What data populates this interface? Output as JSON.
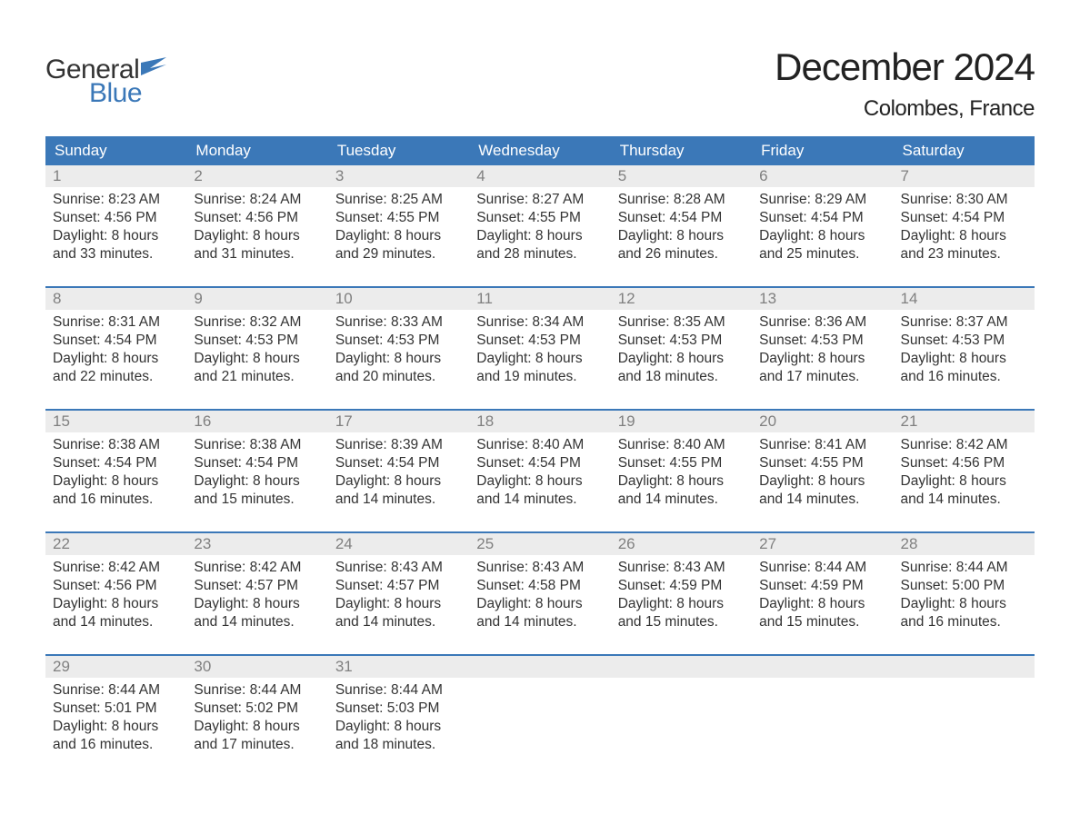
{
  "brand": {
    "part1": "General",
    "part2": "Blue",
    "accent": "#3b78b8"
  },
  "title": "December 2024",
  "location": "Colombes, France",
  "colors": {
    "header_bg": "#3b78b8",
    "header_text": "#ffffff",
    "daynum_bg": "#ececec",
    "daynum_text": "#808080",
    "body_text": "#333333",
    "rule": "#3b78b8",
    "page_bg": "#ffffff"
  },
  "weekdays": [
    "Sunday",
    "Monday",
    "Tuesday",
    "Wednesday",
    "Thursday",
    "Friday",
    "Saturday"
  ],
  "weeks": [
    [
      {
        "day": "1",
        "sunrise": "Sunrise: 8:23 AM",
        "sunset": "Sunset: 4:56 PM",
        "dl1": "Daylight: 8 hours",
        "dl2": "and 33 minutes."
      },
      {
        "day": "2",
        "sunrise": "Sunrise: 8:24 AM",
        "sunset": "Sunset: 4:56 PM",
        "dl1": "Daylight: 8 hours",
        "dl2": "and 31 minutes."
      },
      {
        "day": "3",
        "sunrise": "Sunrise: 8:25 AM",
        "sunset": "Sunset: 4:55 PM",
        "dl1": "Daylight: 8 hours",
        "dl2": "and 29 minutes."
      },
      {
        "day": "4",
        "sunrise": "Sunrise: 8:27 AM",
        "sunset": "Sunset: 4:55 PM",
        "dl1": "Daylight: 8 hours",
        "dl2": "and 28 minutes."
      },
      {
        "day": "5",
        "sunrise": "Sunrise: 8:28 AM",
        "sunset": "Sunset: 4:54 PM",
        "dl1": "Daylight: 8 hours",
        "dl2": "and 26 minutes."
      },
      {
        "day": "6",
        "sunrise": "Sunrise: 8:29 AM",
        "sunset": "Sunset: 4:54 PM",
        "dl1": "Daylight: 8 hours",
        "dl2": "and 25 minutes."
      },
      {
        "day": "7",
        "sunrise": "Sunrise: 8:30 AM",
        "sunset": "Sunset: 4:54 PM",
        "dl1": "Daylight: 8 hours",
        "dl2": "and 23 minutes."
      }
    ],
    [
      {
        "day": "8",
        "sunrise": "Sunrise: 8:31 AM",
        "sunset": "Sunset: 4:54 PM",
        "dl1": "Daylight: 8 hours",
        "dl2": "and 22 minutes."
      },
      {
        "day": "9",
        "sunrise": "Sunrise: 8:32 AM",
        "sunset": "Sunset: 4:53 PM",
        "dl1": "Daylight: 8 hours",
        "dl2": "and 21 minutes."
      },
      {
        "day": "10",
        "sunrise": "Sunrise: 8:33 AM",
        "sunset": "Sunset: 4:53 PM",
        "dl1": "Daylight: 8 hours",
        "dl2": "and 20 minutes."
      },
      {
        "day": "11",
        "sunrise": "Sunrise: 8:34 AM",
        "sunset": "Sunset: 4:53 PM",
        "dl1": "Daylight: 8 hours",
        "dl2": "and 19 minutes."
      },
      {
        "day": "12",
        "sunrise": "Sunrise: 8:35 AM",
        "sunset": "Sunset: 4:53 PM",
        "dl1": "Daylight: 8 hours",
        "dl2": "and 18 minutes."
      },
      {
        "day": "13",
        "sunrise": "Sunrise: 8:36 AM",
        "sunset": "Sunset: 4:53 PM",
        "dl1": "Daylight: 8 hours",
        "dl2": "and 17 minutes."
      },
      {
        "day": "14",
        "sunrise": "Sunrise: 8:37 AM",
        "sunset": "Sunset: 4:53 PM",
        "dl1": "Daylight: 8 hours",
        "dl2": "and 16 minutes."
      }
    ],
    [
      {
        "day": "15",
        "sunrise": "Sunrise: 8:38 AM",
        "sunset": "Sunset: 4:54 PM",
        "dl1": "Daylight: 8 hours",
        "dl2": "and 16 minutes."
      },
      {
        "day": "16",
        "sunrise": "Sunrise: 8:38 AM",
        "sunset": "Sunset: 4:54 PM",
        "dl1": "Daylight: 8 hours",
        "dl2": "and 15 minutes."
      },
      {
        "day": "17",
        "sunrise": "Sunrise: 8:39 AM",
        "sunset": "Sunset: 4:54 PM",
        "dl1": "Daylight: 8 hours",
        "dl2": "and 14 minutes."
      },
      {
        "day": "18",
        "sunrise": "Sunrise: 8:40 AM",
        "sunset": "Sunset: 4:54 PM",
        "dl1": "Daylight: 8 hours",
        "dl2": "and 14 minutes."
      },
      {
        "day": "19",
        "sunrise": "Sunrise: 8:40 AM",
        "sunset": "Sunset: 4:55 PM",
        "dl1": "Daylight: 8 hours",
        "dl2": "and 14 minutes."
      },
      {
        "day": "20",
        "sunrise": "Sunrise: 8:41 AM",
        "sunset": "Sunset: 4:55 PM",
        "dl1": "Daylight: 8 hours",
        "dl2": "and 14 minutes."
      },
      {
        "day": "21",
        "sunrise": "Sunrise: 8:42 AM",
        "sunset": "Sunset: 4:56 PM",
        "dl1": "Daylight: 8 hours",
        "dl2": "and 14 minutes."
      }
    ],
    [
      {
        "day": "22",
        "sunrise": "Sunrise: 8:42 AM",
        "sunset": "Sunset: 4:56 PM",
        "dl1": "Daylight: 8 hours",
        "dl2": "and 14 minutes."
      },
      {
        "day": "23",
        "sunrise": "Sunrise: 8:42 AM",
        "sunset": "Sunset: 4:57 PM",
        "dl1": "Daylight: 8 hours",
        "dl2": "and 14 minutes."
      },
      {
        "day": "24",
        "sunrise": "Sunrise: 8:43 AM",
        "sunset": "Sunset: 4:57 PM",
        "dl1": "Daylight: 8 hours",
        "dl2": "and 14 minutes."
      },
      {
        "day": "25",
        "sunrise": "Sunrise: 8:43 AM",
        "sunset": "Sunset: 4:58 PM",
        "dl1": "Daylight: 8 hours",
        "dl2": "and 14 minutes."
      },
      {
        "day": "26",
        "sunrise": "Sunrise: 8:43 AM",
        "sunset": "Sunset: 4:59 PM",
        "dl1": "Daylight: 8 hours",
        "dl2": "and 15 minutes."
      },
      {
        "day": "27",
        "sunrise": "Sunrise: 8:44 AM",
        "sunset": "Sunset: 4:59 PM",
        "dl1": "Daylight: 8 hours",
        "dl2": "and 15 minutes."
      },
      {
        "day": "28",
        "sunrise": "Sunrise: 8:44 AM",
        "sunset": "Sunset: 5:00 PM",
        "dl1": "Daylight: 8 hours",
        "dl2": "and 16 minutes."
      }
    ],
    [
      {
        "day": "29",
        "sunrise": "Sunrise: 8:44 AM",
        "sunset": "Sunset: 5:01 PM",
        "dl1": "Daylight: 8 hours",
        "dl2": "and 16 minutes."
      },
      {
        "day": "30",
        "sunrise": "Sunrise: 8:44 AM",
        "sunset": "Sunset: 5:02 PM",
        "dl1": "Daylight: 8 hours",
        "dl2": "and 17 minutes."
      },
      {
        "day": "31",
        "sunrise": "Sunrise: 8:44 AM",
        "sunset": "Sunset: 5:03 PM",
        "dl1": "Daylight: 8 hours",
        "dl2": "and 18 minutes."
      },
      null,
      null,
      null,
      null
    ]
  ]
}
